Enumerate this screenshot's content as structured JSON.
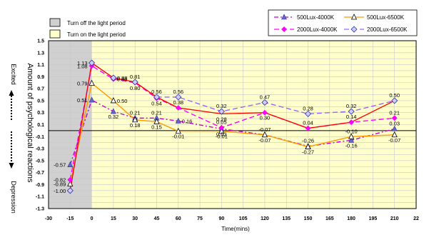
{
  "chart_data": {
    "type": "line",
    "xlabel": "Time(mins)",
    "ylabel": "Amount of psychological reactions",
    "y_top_label": "Excited",
    "y_bottom_label": "Depression",
    "xlim": [
      -30,
      225
    ],
    "ylim": [
      -1.3,
      1.5
    ],
    "x_ticks": [
      "-30",
      "-15",
      "0",
      "15",
      "30",
      "45",
      "60",
      "75",
      "90",
      "105",
      "120",
      "135",
      "150",
      "165",
      "180",
      "195",
      "210",
      "22"
    ],
    "y_ticks": [
      "1.5",
      "1.3",
      "1.1",
      "0.9",
      "0.7",
      "0.5",
      "0.3",
      "0.1",
      "-0.1",
      "-0.3",
      "-0.5",
      "-0.7",
      "-0.9",
      "-1.1",
      "-1.3"
    ],
    "y_tick_values": [
      1.5,
      1.3,
      1.1,
      0.9,
      0.7,
      0.5,
      0.3,
      0.1,
      -0.1,
      -0.3,
      -0.5,
      -0.7,
      -0.9,
      -1.1,
      -1.3
    ],
    "periods": [
      {
        "label": "Turn off the light period",
        "range": [
          -30,
          0
        ],
        "color": "#d0d0d0"
      },
      {
        "label": "Turn on the light period",
        "range": [
          0,
          225
        ],
        "color": "#ffffcc"
      }
    ],
    "series": [
      {
        "name": "500Lux-4000K",
        "color": "#cc00cc",
        "dash": "dashdot",
        "marker": "triangle-filled",
        "x": [
          -15,
          0,
          15,
          30,
          45,
          60,
          90,
          120,
          150,
          180,
          210
        ],
        "y": [
          -0.57,
          0.51,
          0.32,
          0.21,
          0.21,
          0.16,
          0.03,
          -0.07,
          -0.26,
          -0.16,
          0.03
        ]
      },
      {
        "name": "500Lux-6500K",
        "color": "#ff9900",
        "dash": "solid",
        "marker": "triangle-open",
        "x": [
          -15,
          0,
          15,
          30,
          45,
          60,
          90,
          120,
          150,
          180,
          210
        ],
        "y": [
          -0.89,
          0.79,
          0.5,
          0.18,
          0.15,
          -0.01,
          -0.01,
          -0.07,
          -0.27,
          -0.1,
          -0.07
        ]
      },
      {
        "name": "2000Lux-4000K",
        "color": "#ff00ff",
        "dash": "dashed",
        "marker": "diamond-filled",
        "x": [
          -15,
          0,
          15,
          30,
          45,
          60,
          90,
          120,
          150,
          180,
          210
        ],
        "y": [
          -0.82,
          1.08,
          0.86,
          0.8,
          0.54,
          0.38,
          0.05,
          0.3,
          0.04,
          0.14,
          0.21
        ]
      },
      {
        "name": "2000Lux-6500K",
        "color": "#9966ff",
        "dash": "dashed",
        "marker": "diamond-open",
        "x": [
          -15,
          0,
          15,
          30,
          45,
          60,
          90,
          120,
          150,
          180,
          210
        ],
        "y": [
          -1.0,
          1.13,
          0.88,
          0.81,
          0.56,
          0.56,
          0.32,
          0.47,
          0.28,
          0.32,
          0.5
        ]
      },
      {
        "name": "",
        "color": "#ff0000",
        "dash": "solid",
        "marker": "none",
        "x": [
          -15,
          0,
          15,
          30,
          45,
          60,
          90,
          120,
          150,
          180,
          210
        ],
        "y": [
          -1.0,
          1.13,
          0.88,
          0.81,
          0.56,
          0.38,
          0.28,
          0.3,
          0.04,
          0.14,
          0.5
        ]
      }
    ],
    "data_labels": [
      {
        "x": -15,
        "y": -0.57,
        "text": "-0.57",
        "side": "left"
      },
      {
        "x": -15,
        "y": -0.82,
        "text": "-0.82",
        "side": "left"
      },
      {
        "x": -15,
        "y": -0.89,
        "text": "-0.89",
        "side": "left"
      },
      {
        "x": -15,
        "y": -1.0,
        "text": "-1.00",
        "side": "left"
      },
      {
        "x": 0,
        "y": 1.13,
        "text": "1.13",
        "side": "left"
      },
      {
        "x": 0,
        "y": 1.08,
        "text": "1.08",
        "side": "left"
      },
      {
        "x": 0,
        "y": 0.79,
        "text": "0.79",
        "side": "left"
      },
      {
        "x": 0,
        "y": 0.51,
        "text": "0.51",
        "side": "left"
      },
      {
        "x": 15,
        "y": 0.88,
        "text": "0.88",
        "side": "right"
      },
      {
        "x": 15,
        "y": 0.86,
        "text": "0.86",
        "side": "right"
      },
      {
        "x": 15,
        "y": 0.5,
        "text": "0.50",
        "side": "right"
      },
      {
        "x": 15,
        "y": 0.32,
        "text": "0.32",
        "side": "below"
      },
      {
        "x": 30,
        "y": 0.81,
        "text": "0.81",
        "side": "above"
      },
      {
        "x": 30,
        "y": 0.8,
        "text": "0.80",
        "side": "below"
      },
      {
        "x": 30,
        "y": 0.21,
        "text": "0.21",
        "side": "above"
      },
      {
        "x": 30,
        "y": 0.18,
        "text": "0.18",
        "side": "below"
      },
      {
        "x": 45,
        "y": 0.56,
        "text": "0.56",
        "side": "above"
      },
      {
        "x": 45,
        "y": 0.54,
        "text": "0.54",
        "side": "below"
      },
      {
        "x": 45,
        "y": 0.21,
        "text": "0.21",
        "side": "above"
      },
      {
        "x": 45,
        "y": 0.15,
        "text": "0.15",
        "side": "below"
      },
      {
        "x": 60,
        "y": 0.56,
        "text": "0.56",
        "side": "above"
      },
      {
        "x": 60,
        "y": 0.38,
        "text": "0.38",
        "side": "above"
      },
      {
        "x": 60,
        "y": 0.16,
        "text": "0.16",
        "side": "right"
      },
      {
        "x": 60,
        "y": -0.01,
        "text": "-0.01",
        "side": "below"
      },
      {
        "x": 90,
        "y": 0.32,
        "text": "0.32",
        "side": "above"
      },
      {
        "x": 90,
        "y": 0.28,
        "text": "0.28",
        "side": "below"
      },
      {
        "x": 90,
        "y": 0.05,
        "text": "0.05",
        "side": "above"
      },
      {
        "x": 90,
        "y": 0.03,
        "text": "0.03",
        "side": "below"
      },
      {
        "x": 90,
        "y": -0.01,
        "text": "-0.01",
        "side": "below"
      },
      {
        "x": 120,
        "y": 0.47,
        "text": "0.47",
        "side": "above"
      },
      {
        "x": 120,
        "y": 0.3,
        "text": "0.30",
        "side": "below"
      },
      {
        "x": 120,
        "y": -0.07,
        "text": "-0.07",
        "side": "above"
      },
      {
        "x": 120,
        "y": -0.07,
        "text": "-0.07",
        "side": "below"
      },
      {
        "x": 150,
        "y": 0.28,
        "text": "0.28",
        "side": "above"
      },
      {
        "x": 150,
        "y": 0.04,
        "text": "0.04",
        "side": "above"
      },
      {
        "x": 150,
        "y": -0.26,
        "text": "-0.26",
        "side": "above"
      },
      {
        "x": 150,
        "y": -0.27,
        "text": "-0.27",
        "side": "below"
      },
      {
        "x": 180,
        "y": 0.32,
        "text": "0.32",
        "side": "above"
      },
      {
        "x": 180,
        "y": 0.14,
        "text": "0.14",
        "side": "above"
      },
      {
        "x": 180,
        "y": -0.1,
        "text": "-0.10",
        "side": "above"
      },
      {
        "x": 180,
        "y": -0.16,
        "text": "-0.16",
        "side": "below"
      },
      {
        "x": 210,
        "y": 0.5,
        "text": "0.50",
        "side": "above"
      },
      {
        "x": 210,
        "y": 0.21,
        "text": "0.21",
        "side": "above"
      },
      {
        "x": 210,
        "y": 0.03,
        "text": "0.03",
        "side": "above"
      },
      {
        "x": 210,
        "y": -0.07,
        "text": "-0.07",
        "side": "below"
      }
    ]
  }
}
